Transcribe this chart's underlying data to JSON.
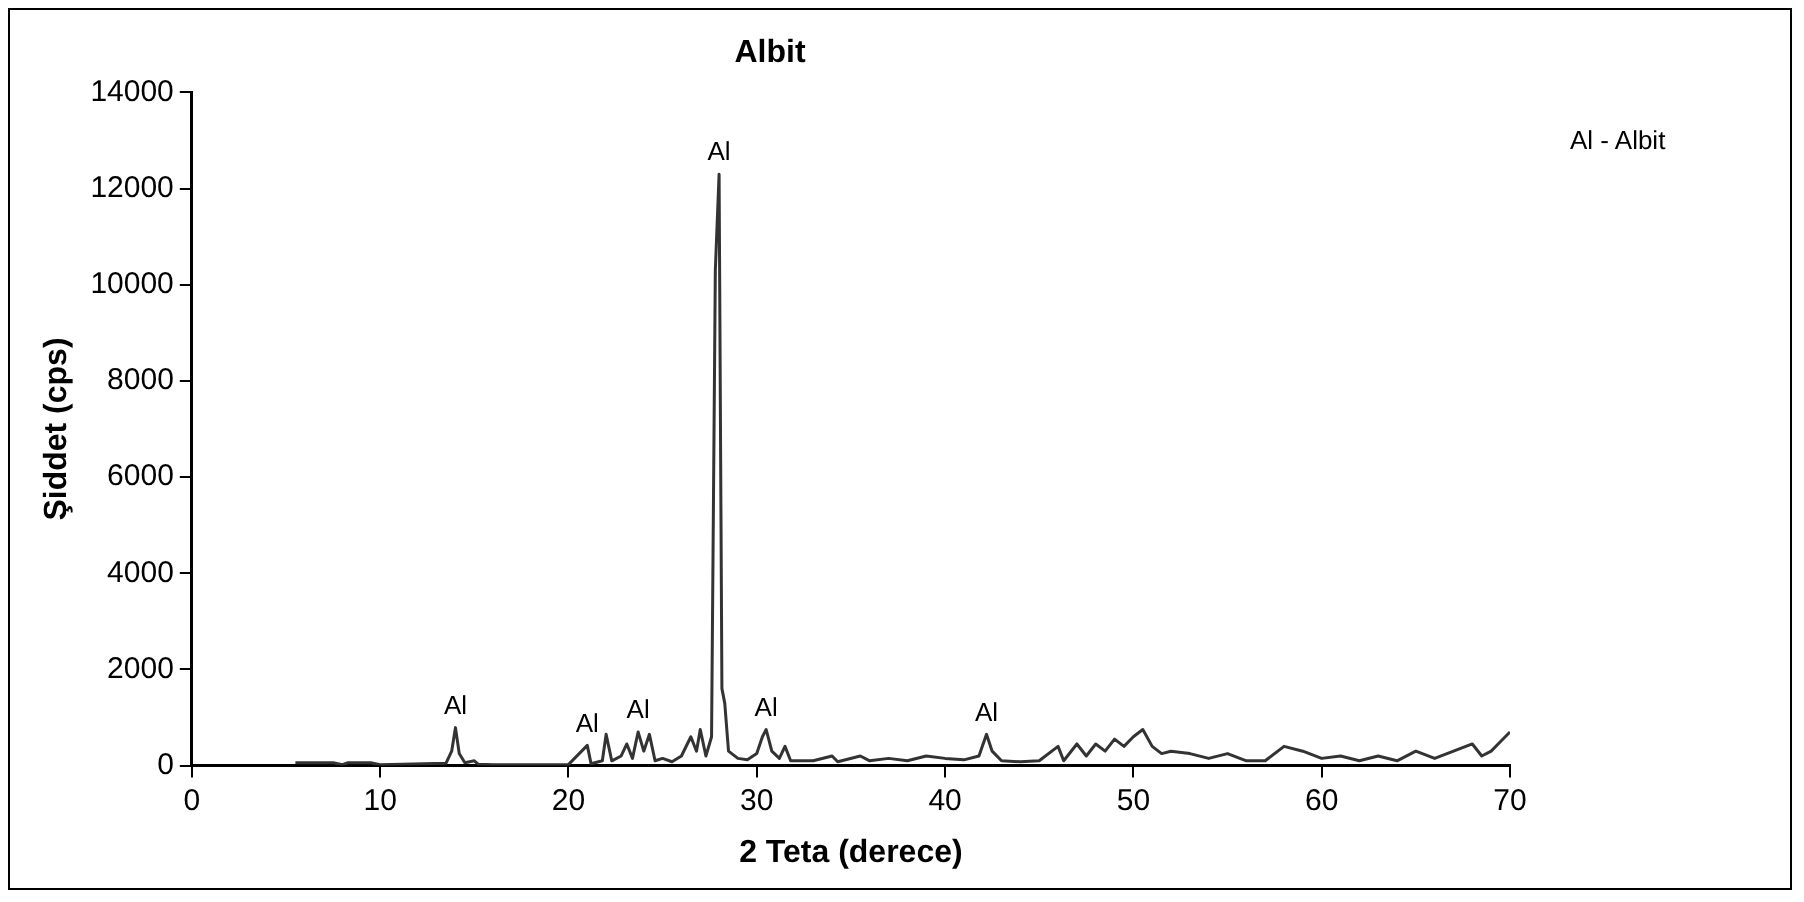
{
  "chart_data": {
    "type": "line",
    "title": "Albit",
    "xlabel": "2 Teta (derece)",
    "ylabel": "Şiddet (cps)",
    "xlim": [
      0,
      70
    ],
    "xticks": [
      0,
      10,
      20,
      30,
      40,
      50,
      60,
      70
    ],
    "ylim": [
      0,
      14000
    ],
    "yticks": [
      0,
      2000,
      4000,
      6000,
      8000,
      10000,
      12000,
      14000
    ],
    "grid": false,
    "legend": false,
    "marker": "none",
    "series": [
      {
        "color": "#333333",
        "x": [
          5.5,
          7.5,
          8.0,
          8.3,
          9.5,
          10,
          13.5,
          13.8,
          14.0,
          14.2,
          14.5,
          15,
          15.2,
          16,
          20,
          21.0,
          21.2,
          21.8,
          22.0,
          22.3,
          22.8,
          23.1,
          23.4,
          23.7,
          24,
          24.3,
          24.6,
          25,
          25.5,
          26,
          26.5,
          26.8,
          27.0,
          27.3,
          27.6,
          27.8,
          28.0,
          28.15,
          28.3,
          28.5,
          29,
          29.5,
          30,
          30.3,
          30.5,
          30.8,
          31.2,
          31.5,
          31.8,
          33,
          34,
          34.3,
          35.5,
          36,
          37,
          38,
          39,
          40,
          41,
          41.8,
          42.2,
          42.5,
          43,
          44,
          45,
          46,
          46.3,
          47,
          47.5,
          48,
          48.5,
          49,
          49.5,
          50,
          50.5,
          51,
          51.5,
          52,
          53,
          54,
          55,
          56,
          57,
          58,
          59,
          60,
          61,
          62,
          63,
          64,
          65,
          66,
          67,
          68,
          68.5,
          69,
          69.5,
          70
        ],
        "values": [
          60,
          60,
          20,
          60,
          60,
          20,
          50,
          300,
          790,
          250,
          60,
          100,
          30,
          20,
          20,
          420,
          40,
          100,
          650,
          100,
          200,
          450,
          150,
          700,
          300,
          650,
          100,
          150,
          80,
          200,
          600,
          300,
          750,
          200,
          600,
          10300,
          12300,
          1600,
          1300,
          300,
          150,
          120,
          250,
          600,
          750,
          300,
          150,
          400,
          100,
          100,
          200,
          80,
          200,
          100,
          150,
          100,
          200,
          150,
          120,
          200,
          650,
          300,
          100,
          80,
          100,
          400,
          100,
          450,
          200,
          450,
          300,
          550,
          400,
          600,
          750,
          400,
          250,
          300,
          250,
          150,
          250,
          100,
          100,
          400,
          300,
          150,
          200,
          100,
          200,
          100,
          300,
          150,
          300,
          450,
          200,
          300,
          500,
          700
        ]
      }
    ],
    "annotations": [
      {
        "text": "Al",
        "x": 14.0,
        "y": 790
      },
      {
        "text": "Al",
        "x": 21.0,
        "y": 420
      },
      {
        "text": "Al",
        "x": 23.7,
        "y": 700
      },
      {
        "text": "Al",
        "x": 28.0,
        "y": 12300
      },
      {
        "text": "Al",
        "x": 30.5,
        "y": 750
      },
      {
        "text": "Al",
        "x": 42.2,
        "y": 650
      },
      "Al - Albit"
    ]
  }
}
